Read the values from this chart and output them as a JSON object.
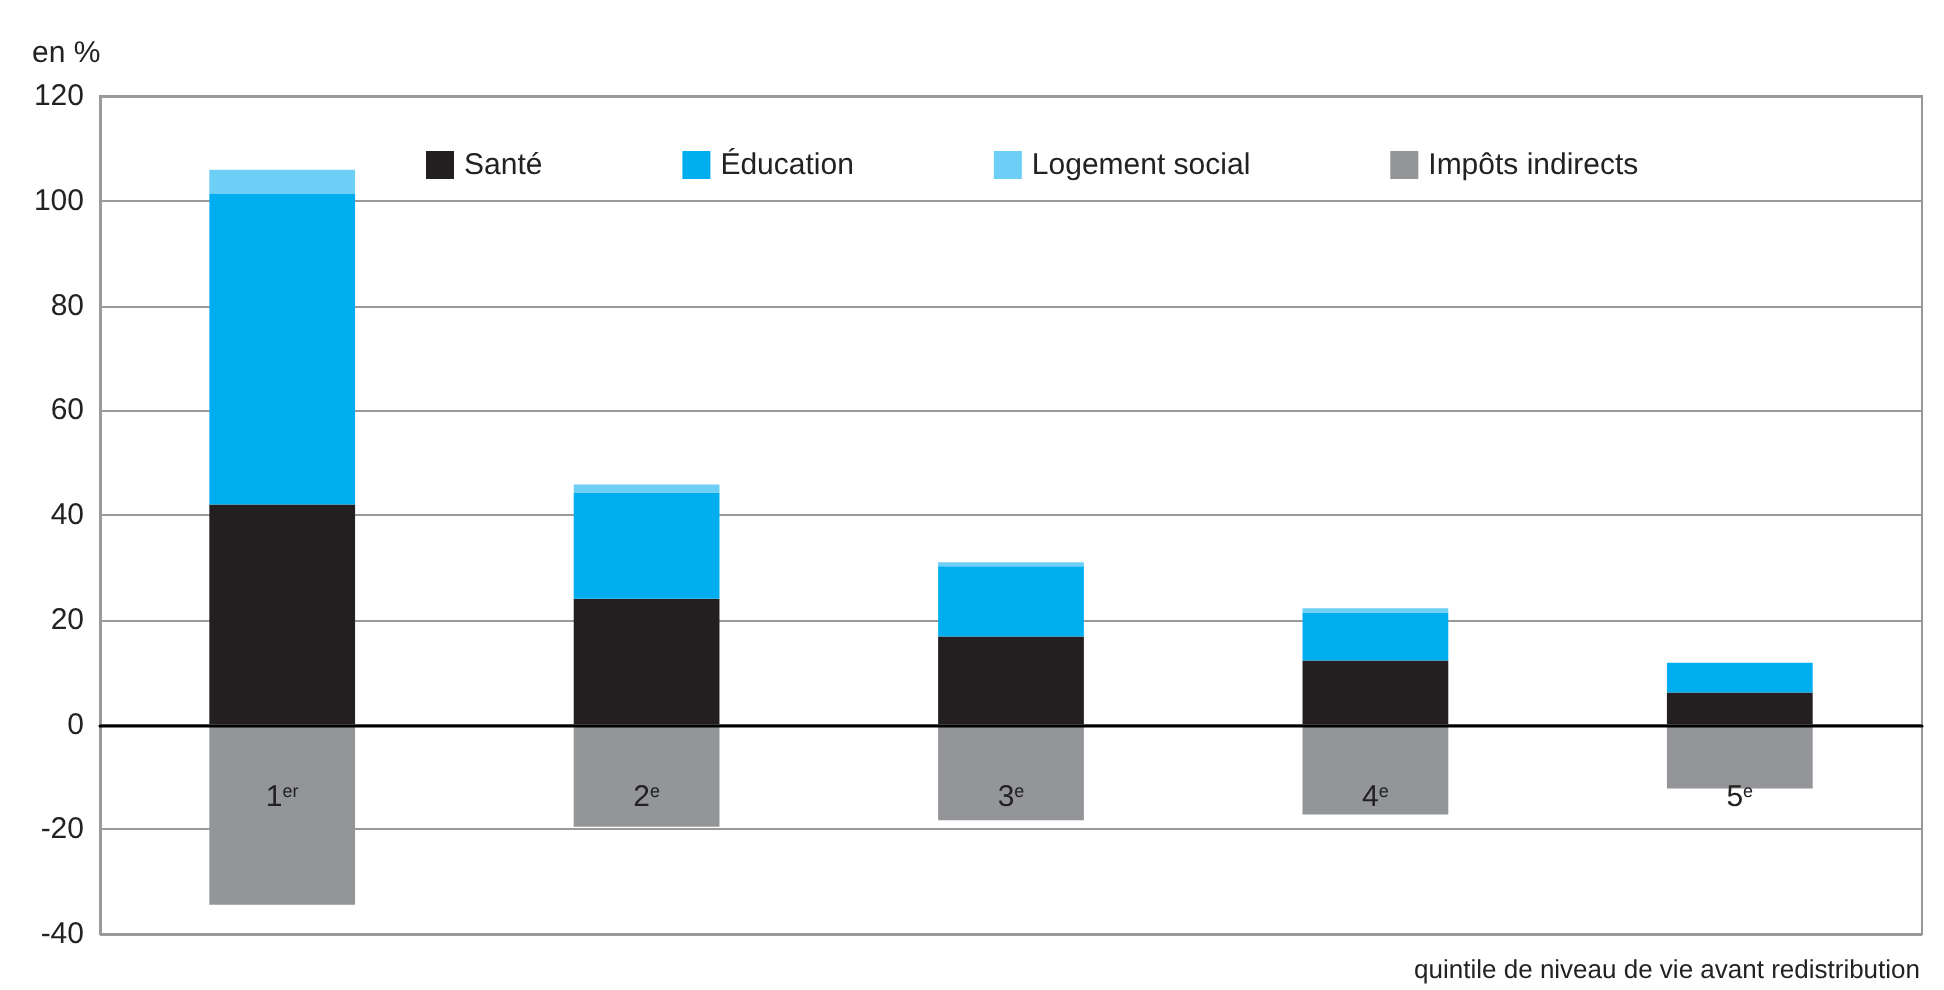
{
  "chart_data": {
    "type": "bar",
    "stacked": true,
    "ylabel": "en %",
    "xlabel": "quintile de niveau de vie avant redistribution",
    "categories": [
      "1$^{er}$",
      "2$^{e}$",
      "3$^{e}$",
      "4$^{e}$",
      "5$^{e}$"
    ],
    "series": [
      {
        "name": "Santé",
        "color": "#231f20",
        "values": [
          42,
          24,
          16.8,
          12.2,
          6.1
        ]
      },
      {
        "name": "Éducation",
        "color": "#00aeef",
        "values": [
          59.3,
          20.3,
          13.4,
          9.2,
          5.7
        ]
      },
      {
        "name": "Logement social",
        "color": "#6dcff6",
        "values": [
          4.6,
          1.5,
          0.8,
          0.8,
          0
        ]
      },
      {
        "name": "Impôts indirects",
        "color": "#939598",
        "values": [
          -34.4,
          -19.5,
          -18.3,
          -17.2,
          -12.2
        ]
      }
    ],
    "ylim": [
      -40,
      120
    ],
    "yticks": [
      -40,
      -20,
      0,
      20,
      40,
      60,
      80,
      100,
      120
    ],
    "grid": "y",
    "legend": "top"
  }
}
